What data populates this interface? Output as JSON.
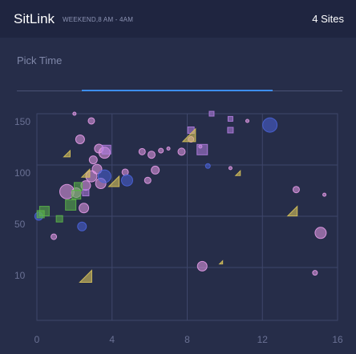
{
  "app": {
    "title": "SitLink",
    "subtitle": "WEEKEND,8 AM - 4AM",
    "site_count": "4 Sites"
  },
  "time_picker": {
    "label": "Pick Time",
    "range_fraction": [
      0.2,
      0.785
    ]
  },
  "colors": {
    "background": "#262d49",
    "header": "#1f2540",
    "accent": "#3d8ef0",
    "pink": "#e59be8",
    "violet": "#b37de0",
    "blue": "#4a63d8",
    "green": "#5bb548",
    "yellow": "#d8c35a"
  },
  "chart_data": {
    "type": "scatter",
    "title": "",
    "xlabel": "",
    "ylabel": "",
    "x_ticks": [
      "0",
      "4",
      "8",
      "12",
      "16"
    ],
    "y_ticks": [
      "150",
      "100",
      "50",
      "10"
    ],
    "xlim": [
      0,
      16
    ],
    "y_scale": "ticks 150, 100, 50, 10 evenly spaced (non-linear)",
    "grid": true,
    "series": [
      {
        "marker": "circle",
        "color": "pink",
        "points": [
          {
            "x": 2.0,
            "y": 150,
            "size": 4
          },
          {
            "x": 2.9,
            "y": 143,
            "size": 8
          },
          {
            "x": 2.3,
            "y": 125,
            "size": 11
          },
          {
            "x": 3.3,
            "y": 116,
            "size": 11
          },
          {
            "x": 3.6,
            "y": 112,
            "size": 14
          },
          {
            "x": 3.0,
            "y": 105,
            "size": 10
          },
          {
            "x": 3.2,
            "y": 96,
            "size": 12
          },
          {
            "x": 2.9,
            "y": 89,
            "size": 14
          },
          {
            "x": 3.4,
            "y": 82,
            "size": 13
          },
          {
            "x": 2.6,
            "y": 80,
            "size": 12
          },
          {
            "x": 1.6,
            "y": 74,
            "size": 18
          },
          {
            "x": 2.1,
            "y": 73,
            "size": 12
          },
          {
            "x": 2.5,
            "y": 58,
            "size": 12
          },
          {
            "x": 0.9,
            "y": 34,
            "size": 7
          },
          {
            "x": 4.7,
            "y": 93,
            "size": 8
          },
          {
            "x": 5.6,
            "y": 113,
            "size": 8
          },
          {
            "x": 6.1,
            "y": 110,
            "size": 9
          },
          {
            "x": 6.6,
            "y": 114,
            "size": 6
          },
          {
            "x": 7.0,
            "y": 116,
            "size": 4
          },
          {
            "x": 7.7,
            "y": 113,
            "size": 9
          },
          {
            "x": 6.3,
            "y": 95,
            "size": 10
          },
          {
            "x": 5.9,
            "y": 85,
            "size": 8
          },
          {
            "x": 8.2,
            "y": 125,
            "size": 7
          },
          {
            "x": 8.7,
            "y": 118,
            "size": 4
          },
          {
            "x": 10.3,
            "y": 97,
            "size": 4
          },
          {
            "x": 11.2,
            "y": 143,
            "size": 4
          },
          {
            "x": 13.8,
            "y": 76,
            "size": 8
          },
          {
            "x": 15.3,
            "y": 71,
            "size": 4
          },
          {
            "x": 15.1,
            "y": 37,
            "size": 14
          },
          {
            "x": 14.8,
            "y": 7,
            "size": 6
          },
          {
            "x": 8.8,
            "y": 11,
            "size": 12
          }
        ]
      },
      {
        "marker": "square",
        "color": "violet",
        "points": [
          {
            "x": 3.7,
            "y": 115,
            "size": 11
          },
          {
            "x": 2.6,
            "y": 73,
            "size": 8
          },
          {
            "x": 8.2,
            "y": 134,
            "size": 8
          },
          {
            "x": 8.8,
            "y": 115,
            "size": 13
          },
          {
            "x": 9.3,
            "y": 150,
            "size": 6
          },
          {
            "x": 10.3,
            "y": 145,
            "size": 6
          },
          {
            "x": 10.3,
            "y": 134,
            "size": 7
          }
        ]
      },
      {
        "marker": "circle",
        "color": "blue",
        "points": [
          {
            "x": 3.6,
            "y": 89,
            "size": 16
          },
          {
            "x": 4.8,
            "y": 85,
            "size": 14
          },
          {
            "x": 2.4,
            "y": 42,
            "size": 11
          },
          {
            "x": 0.1,
            "y": 50,
            "size": 10
          },
          {
            "x": 9.1,
            "y": 99,
            "size": 6
          },
          {
            "x": 12.4,
            "y": 139,
            "size": 18
          }
        ]
      },
      {
        "marker": "square",
        "color": "green",
        "points": [
          {
            "x": 0.4,
            "y": 55,
            "size": 12
          },
          {
            "x": 1.2,
            "y": 48,
            "size": 8
          },
          {
            "x": 1.8,
            "y": 61,
            "size": 13
          },
          {
            "x": 2.2,
            "y": 79,
            "size": 10
          },
          {
            "x": 2.1,
            "y": 71,
            "size": 11
          },
          {
            "x": 0.2,
            "y": 52,
            "size": 9
          }
        ]
      },
      {
        "marker": "triangle",
        "color": "yellow",
        "points": [
          {
            "x": 1.6,
            "y": 111,
            "size": 8
          },
          {
            "x": 2.6,
            "y": 92,
            "size": 10
          },
          {
            "x": 4.1,
            "y": 84,
            "size": 13
          },
          {
            "x": 8.1,
            "y": 129,
            "size": 16
          },
          {
            "x": 10.7,
            "y": 92,
            "size": 6
          },
          {
            "x": 13.6,
            "y": 55,
            "size": 12
          },
          {
            "x": 2.6,
            "y": 5,
            "size": 15
          },
          {
            "x": 9.8,
            "y": 14,
            "size": 4
          }
        ]
      }
    ]
  }
}
